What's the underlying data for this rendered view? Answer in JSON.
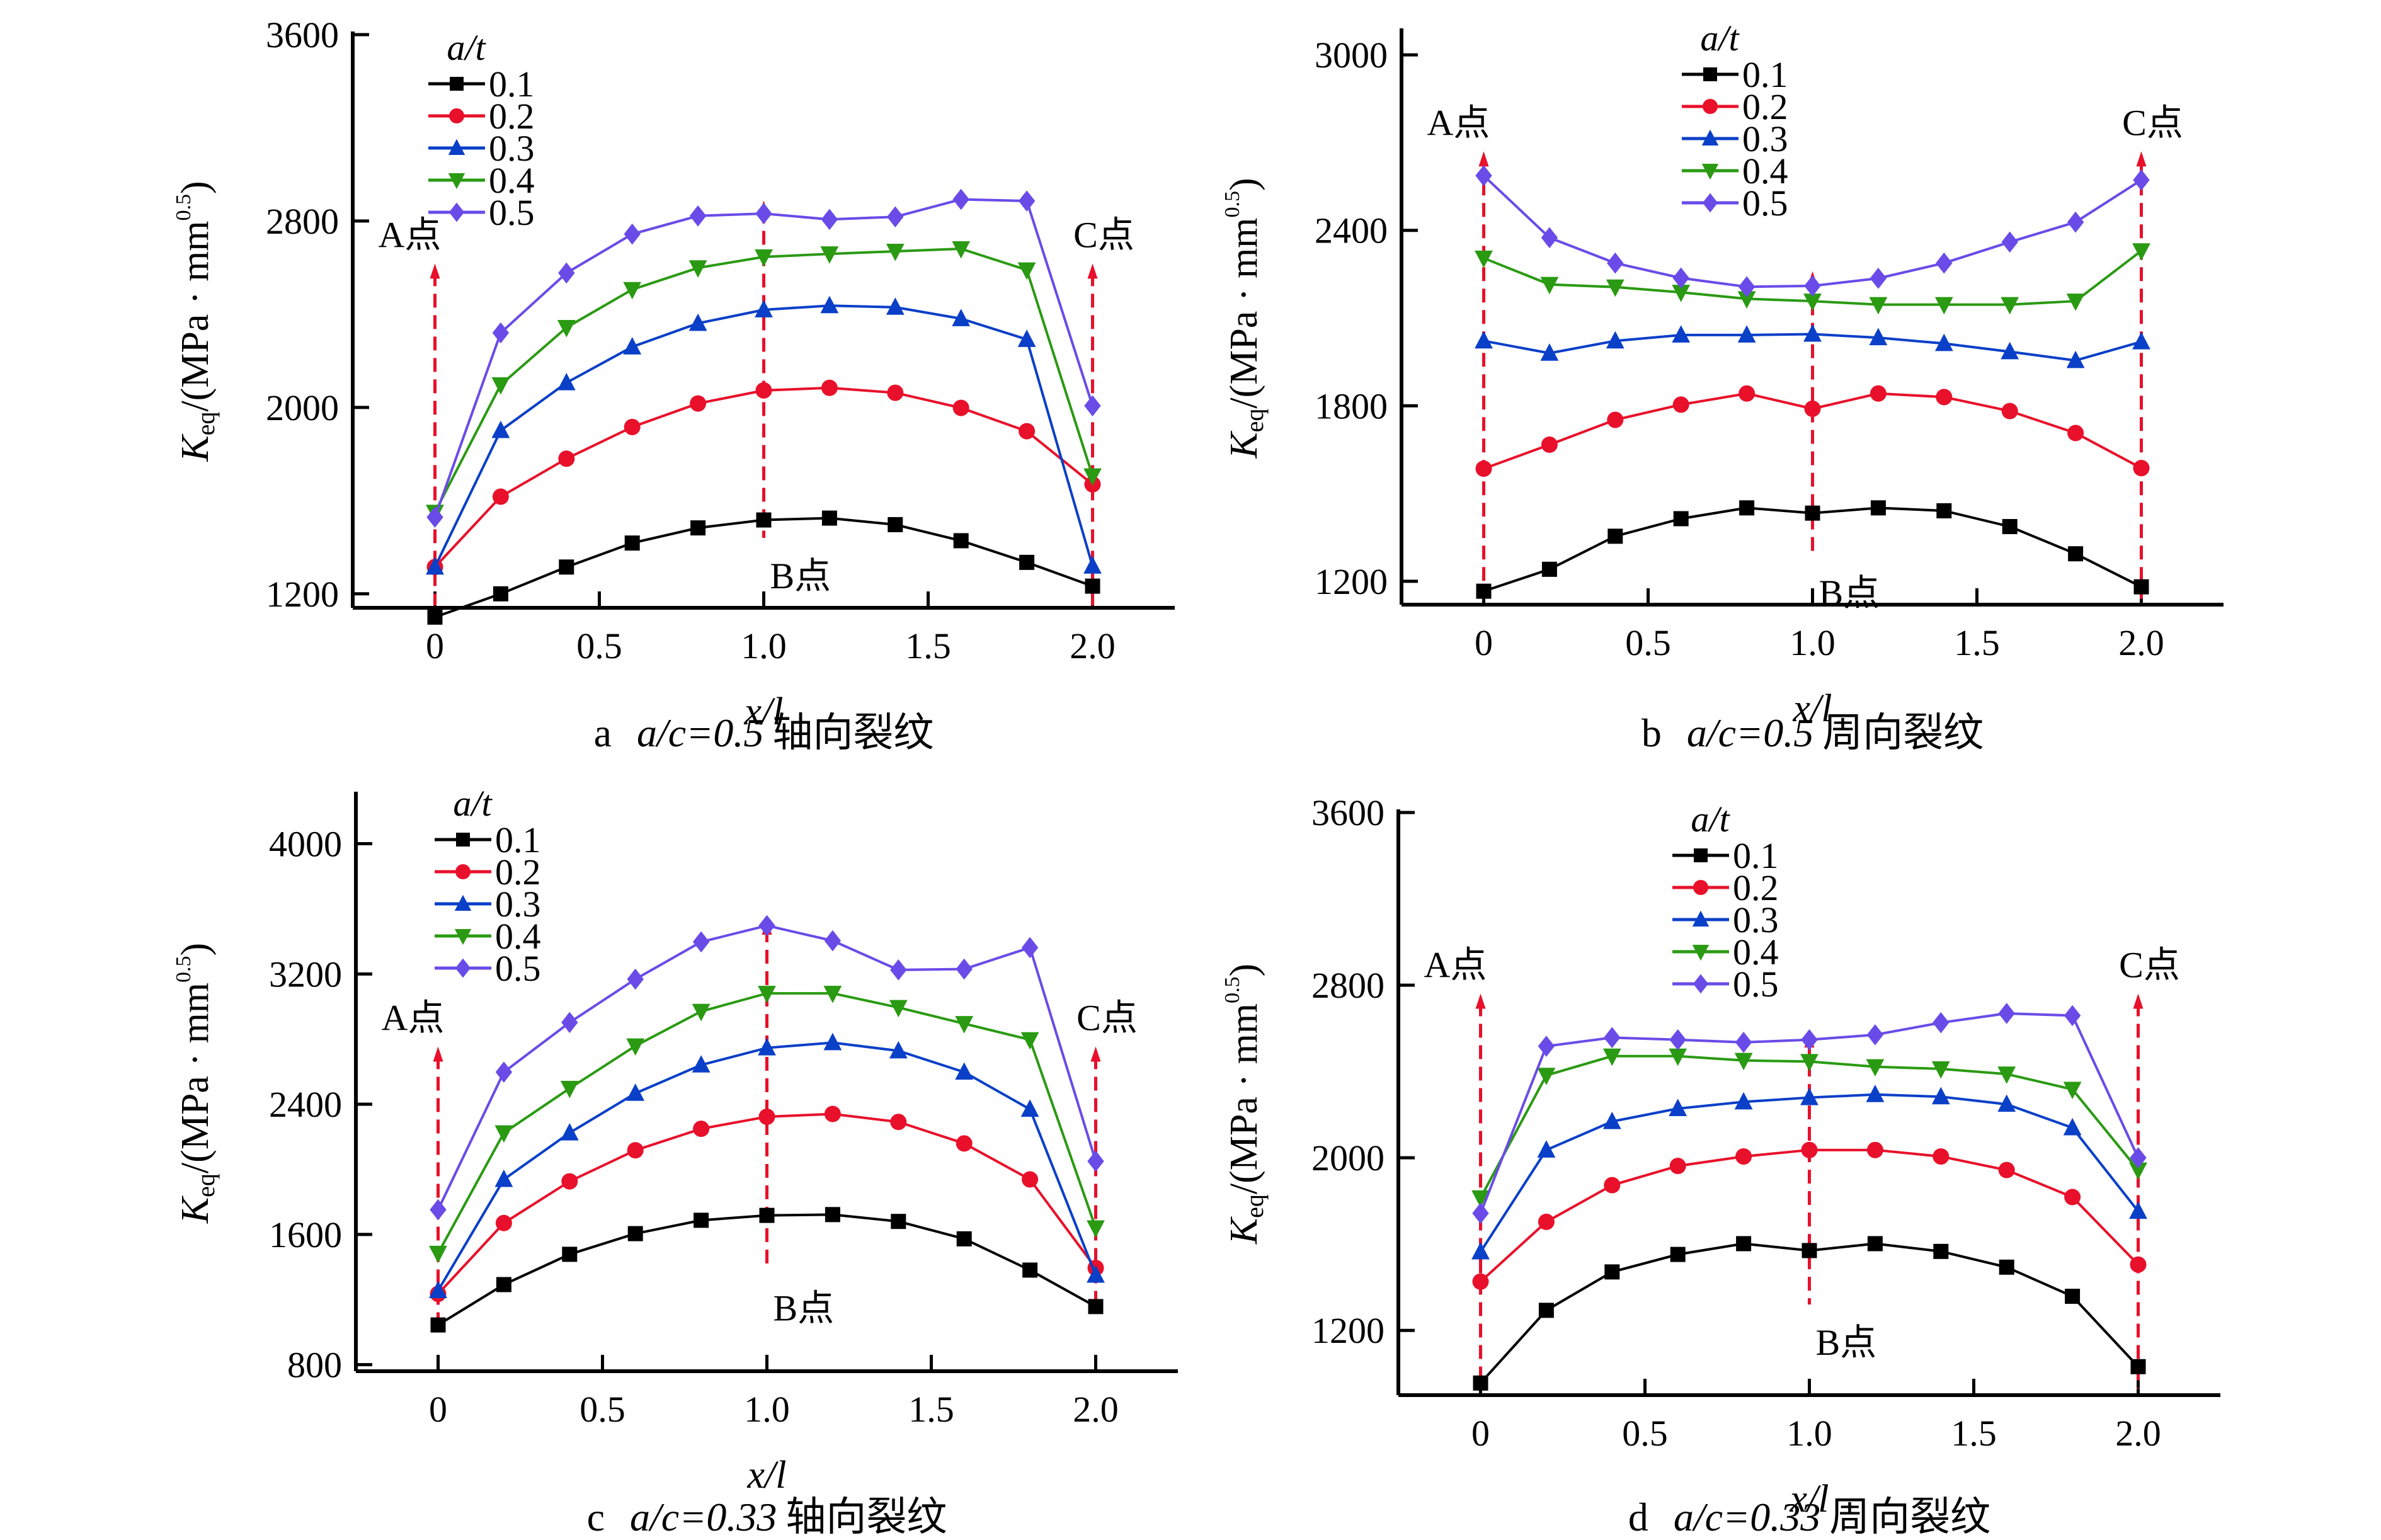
{
  "figure": {
    "x_values": [
      0,
      0.2,
      0.4,
      0.6,
      0.8,
      1.0,
      1.2,
      1.4,
      1.6,
      1.8,
      2.0
    ],
    "legend_title": "a/t",
    "series_colors": {
      "0.1": "#000000",
      "0.2": "#e8102a",
      "0.3": "#0a3fc8",
      "0.4": "#2a9a12",
      "0.5": "#6a4be8"
    },
    "series_markers": {
      "0.1": "square",
      "0.2": "circle",
      "0.3": "triangle-up",
      "0.4": "triangle-down",
      "0.5": "diamond"
    },
    "marker_lines_color": "#e8102a",
    "point_labels": {
      "A": "A点",
      "B": "B点",
      "C": "C点"
    }
  },
  "chart_data": [
    {
      "id": "a",
      "type": "line",
      "title": "",
      "caption_prefix": "a",
      "caption_ratio": "a/c=0.5",
      "caption_text": "轴向裂纹",
      "xlabel": "x/l",
      "ylabel": "Keq/(MPa · mm^0.5)",
      "xlim": [
        -0.25,
        2.25
      ],
      "ylim": [
        1140,
        3600
      ],
      "xticks": [
        0,
        0.5,
        1.0,
        1.5,
        2.0
      ],
      "xtick_labels": [
        "0",
        "0.5",
        "1.0",
        "1.5",
        "2.0"
      ],
      "yticks": [
        1200,
        2000,
        2800,
        3600
      ],
      "ytick_labels": [
        "1200",
        "2000",
        "2800",
        "3600"
      ],
      "legend": "top-left",
      "grid": false,
      "series": [
        {
          "name": "0.1",
          "values": [
            1100,
            1200,
            1315,
            1418,
            1483,
            1517,
            1525,
            1497,
            1428,
            1335,
            1233
          ]
        },
        {
          "name": "0.2",
          "values": [
            1315,
            1617,
            1780,
            1916,
            2017,
            2073,
            2084,
            2063,
            1998,
            1898,
            1670
          ]
        },
        {
          "name": "0.3",
          "values": [
            1315,
            1901,
            2106,
            2260,
            2361,
            2419,
            2437,
            2430,
            2381,
            2292,
            1319
          ]
        },
        {
          "name": "0.4",
          "values": [
            1550,
            2097,
            2343,
            2506,
            2599,
            2646,
            2659,
            2670,
            2681,
            2590,
            1706
          ]
        },
        {
          "name": "0.5",
          "values": [
            1529,
            2320,
            2577,
            2744,
            2822,
            2832,
            2807,
            2818,
            2893,
            2886,
            2007
          ]
        }
      ],
      "annotations": [
        {
          "label": "A点",
          "x": 0,
          "arrow_from": 2580,
          "arrow_to": 1150
        },
        {
          "label": "B点",
          "x": 1.0,
          "arrow_from": 2850,
          "arrow_to": 1440
        },
        {
          "label": "C点",
          "x": 2.0,
          "arrow_from": 2580,
          "arrow_to": 1150
        }
      ]
    },
    {
      "id": "b",
      "type": "line",
      "title": "",
      "caption_prefix": "b",
      "caption_ratio": "a/c=0.5",
      "caption_text": "周向裂纹",
      "xlabel": "x/l",
      "ylabel": "Keq/(MPa · mm^0.5)",
      "xlim": [
        -0.25,
        2.25
      ],
      "ylim": [
        1120,
        3080
      ],
      "xticks": [
        0,
        0.5,
        1.0,
        1.5,
        2.0
      ],
      "xtick_labels": [
        "0",
        "0.5",
        "1.0",
        "1.5",
        "2.0"
      ],
      "yticks": [
        1200,
        1800,
        2400,
        3000
      ],
      "ytick_labels": [
        "1200",
        "1800",
        "2400",
        "3000"
      ],
      "legend": "top-center",
      "grid": false,
      "series": [
        {
          "name": "0.1",
          "values": [
            1166,
            1241,
            1354,
            1414,
            1451,
            1433,
            1451,
            1441,
            1387,
            1294,
            1181
          ]
        },
        {
          "name": "0.2",
          "values": [
            1585,
            1667,
            1752,
            1804,
            1842,
            1790,
            1842,
            1830,
            1782,
            1707,
            1587
          ]
        },
        {
          "name": "0.3",
          "values": [
            2022,
            1980,
            2022,
            2042,
            2042,
            2045,
            2033,
            2013,
            1985,
            1955,
            2019
          ]
        },
        {
          "name": "0.4",
          "values": [
            2305,
            2215,
            2206,
            2188,
            2166,
            2158,
            2146,
            2146,
            2146,
            2158,
            2330
          ]
        },
        {
          "name": "0.5",
          "values": [
            2587,
            2375,
            2288,
            2237,
            2207,
            2210,
            2236,
            2288,
            2360,
            2428,
            2572
          ]
        }
      ],
      "annotations": [
        {
          "label": "A点",
          "x": 0,
          "arrow_from": 2640,
          "arrow_to": 1140
        },
        {
          "label": "B点",
          "x": 1.0,
          "arrow_from": 2230,
          "arrow_to": 1290
        },
        {
          "label": "C点",
          "x": 2.0,
          "arrow_from": 2640,
          "arrow_to": 1140
        }
      ]
    },
    {
      "id": "c",
      "type": "line",
      "title": "",
      "caption_prefix": "c",
      "caption_ratio": "a/c=0.33",
      "caption_text": "轴向裂纹",
      "xlabel": "x/l",
      "ylabel": "Keq/(MPa · mm^0.5)",
      "xlim": [
        -0.25,
        2.25
      ],
      "ylim": [
        760,
        4300
      ],
      "xticks": [
        0,
        0.5,
        1.0,
        1.5,
        2.0
      ],
      "xtick_labels": [
        "0",
        "0.5",
        "1.0",
        "1.5",
        "2.0"
      ],
      "yticks": [
        800,
        1600,
        2400,
        3200,
        4000
      ],
      "ytick_labels": [
        "800",
        "1600",
        "2400",
        "3200",
        "4000"
      ],
      "legend": "top-left",
      "grid": false,
      "series": [
        {
          "name": "0.1",
          "values": [
            1044,
            1292,
            1478,
            1605,
            1687,
            1717,
            1722,
            1680,
            1573,
            1381,
            1157
          ]
        },
        {
          "name": "0.2",
          "values": [
            1235,
            1670,
            1926,
            2117,
            2249,
            2323,
            2340,
            2291,
            2159,
            1938,
            1394
          ]
        },
        {
          "name": "0.3",
          "values": [
            1255,
            1938,
            2224,
            2467,
            2641,
            2746,
            2778,
            2728,
            2597,
            2369,
            1350
          ]
        },
        {
          "name": "0.4",
          "values": [
            1484,
            2224,
            2497,
            2758,
            2970,
            3081,
            3081,
            2994,
            2895,
            2796,
            1640
          ]
        },
        {
          "name": "0.5",
          "values": [
            1752,
            2597,
            2902,
            3168,
            3397,
            3497,
            3404,
            3225,
            3230,
            3362,
            2050
          ]
        }
      ],
      "annotations": [
        {
          "label": "A点",
          "x": 0,
          "arrow_from": 2700,
          "arrow_to": 1000
        },
        {
          "label": "B点",
          "x": 1.0,
          "arrow_from": 3480,
          "arrow_to": 1380
        },
        {
          "label": "C点",
          "x": 2.0,
          "arrow_from": 2700,
          "arrow_to": 1150
        }
      ]
    },
    {
      "id": "d",
      "type": "line",
      "title": "",
      "caption_prefix": "d",
      "caption_ratio": "a/c=0.33",
      "caption_text": "周向裂纹",
      "xlabel": "x/l",
      "ylabel": "Keq/(MPa · mm^0.5)",
      "xlim": [
        -0.25,
        2.25
      ],
      "ylim": [
        900,
        3600
      ],
      "xticks": [
        0,
        0.5,
        1.0,
        1.5,
        2.0
      ],
      "xtick_labels": [
        "0",
        "0.5",
        "1.0",
        "1.5",
        "2.0"
      ],
      "yticks": [
        1200,
        2000,
        2800,
        3600
      ],
      "ytick_labels": [
        "1200",
        "2000",
        "2800",
        "3600"
      ],
      "legend": "top-center",
      "grid": false,
      "series": [
        {
          "name": "0.1",
          "values": [
            956,
            1293,
            1471,
            1552,
            1602,
            1570,
            1602,
            1566,
            1493,
            1358,
            1032
          ]
        },
        {
          "name": "0.2",
          "values": [
            1426,
            1703,
            1873,
            1962,
            2006,
            2036,
            2036,
            2006,
            1943,
            1818,
            1505
          ]
        },
        {
          "name": "0.3",
          "values": [
            1564,
            2036,
            2168,
            2228,
            2259,
            2279,
            2293,
            2283,
            2248,
            2139,
            1752
          ]
        },
        {
          "name": "0.4",
          "values": [
            1814,
            2382,
            2471,
            2471,
            2451,
            2446,
            2422,
            2412,
            2388,
            2317,
            1943
          ]
        },
        {
          "name": "0.5",
          "values": [
            1743,
            2517,
            2557,
            2547,
            2535,
            2547,
            2570,
            2626,
            2669,
            2659,
            2000
          ]
        }
      ],
      "annotations": [
        {
          "label": "A点",
          "x": 0,
          "arrow_from": 2720,
          "arrow_to": 930
        },
        {
          "label": "B点",
          "x": 1.0,
          "arrow_from": 2540,
          "arrow_to": 1320
        },
        {
          "label": "C点",
          "x": 2.0,
          "arrow_from": 2720,
          "arrow_to": 930
        }
      ]
    }
  ]
}
